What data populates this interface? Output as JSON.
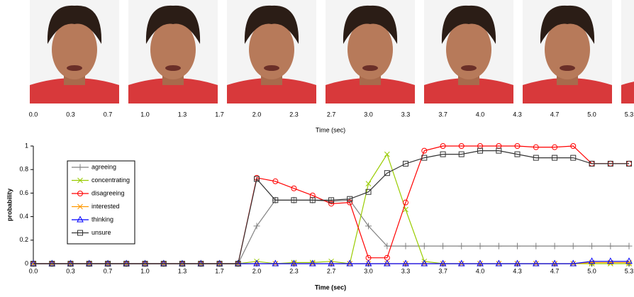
{
  "frame_axis": {
    "label": "Time (sec)",
    "xlim": [
      0,
      5.333
    ],
    "ticks": [
      {
        "value": 0,
        "label": "0.0"
      },
      {
        "value": 0.333,
        "label": "0.3"
      },
      {
        "value": 0.667,
        "label": "0.7"
      },
      {
        "value": 1,
        "label": "1.0"
      },
      {
        "value": 1.333,
        "label": "1.3"
      },
      {
        "value": 1.667,
        "label": "1.7"
      },
      {
        "value": 2,
        "label": "2.0"
      },
      {
        "value": 2.333,
        "label": "2.3"
      },
      {
        "value": 2.667,
        "label": "2.7"
      },
      {
        "value": 3,
        "label": "3.0"
      },
      {
        "value": 3.333,
        "label": "3.3"
      },
      {
        "value": 3.667,
        "label": "3.7"
      },
      {
        "value": 4,
        "label": "4.0"
      },
      {
        "value": 4.333,
        "label": "4.3"
      },
      {
        "value": 4.667,
        "label": "4.7"
      },
      {
        "value": 5,
        "label": "5.0"
      },
      {
        "value": 5.333,
        "label": "5.3"
      }
    ]
  },
  "chart_data": {
    "type": "line",
    "x_label": "Time (sec)",
    "y_label": "probability",
    "legend": "upper left",
    "grid": false,
    "x": [
      0,
      0.167,
      0.333,
      0.5,
      0.667,
      0.833,
      1,
      1.167,
      1.333,
      1.5,
      1.667,
      1.833,
      2,
      2.167,
      2.333,
      2.5,
      2.667,
      2.833,
      3,
      3.167,
      3.333,
      3.5,
      3.667,
      3.833,
      4,
      4.167,
      4.333,
      4.5,
      4.667,
      4.833,
      5,
      5.167,
      5.333
    ],
    "xlim": [
      0,
      5.333
    ],
    "xticks": [
      {
        "value": 0,
        "label": "0.0"
      },
      {
        "value": 0.333,
        "label": "0.3"
      },
      {
        "value": 0.667,
        "label": "0.7"
      },
      {
        "value": 1,
        "label": "1.0"
      },
      {
        "value": 1.333,
        "label": "1.3"
      },
      {
        "value": 1.667,
        "label": "1.7"
      },
      {
        "value": 2,
        "label": "2.0"
      },
      {
        "value": 2.333,
        "label": "2.3"
      },
      {
        "value": 2.667,
        "label": "2.7"
      },
      {
        "value": 3,
        "label": "3.0"
      },
      {
        "value": 3.333,
        "label": "3.3"
      },
      {
        "value": 3.667,
        "label": "3.7"
      },
      {
        "value": 4,
        "label": "4.0"
      },
      {
        "value": 4.333,
        "label": "4.3"
      },
      {
        "value": 4.667,
        "label": "4.7"
      },
      {
        "value": 5,
        "label": "5.0"
      },
      {
        "value": 5.333,
        "label": "5.3"
      }
    ],
    "ylim": [
      0,
      1
    ],
    "yticks": [
      0,
      0.2,
      0.4,
      0.6,
      0.8,
      1
    ],
    "series": [
      {
        "name": "agreeing",
        "color": "#808080",
        "marker": "plus",
        "values": [
          0,
          0,
          0,
          0,
          0,
          0,
          0,
          0,
          0,
          0,
          0,
          0,
          0.32,
          0.54,
          0.54,
          0.54,
          0.53,
          0.54,
          0.32,
          0.15,
          0.15,
          0.15,
          0.15,
          0.15,
          0.15,
          0.15,
          0.15,
          0.15,
          0.15,
          0.15,
          0.15,
          0.15,
          0.15
        ]
      },
      {
        "name": "concentrating",
        "color": "#99cc00",
        "marker": "cross",
        "values": [
          0,
          0,
          0,
          0,
          0,
          0,
          0,
          0,
          0,
          0,
          0,
          0,
          0.02,
          0,
          0.01,
          0.01,
          0.02,
          0,
          0.68,
          0.93,
          0.46,
          0.02,
          0,
          0,
          0,
          0,
          0,
          0,
          0,
          0,
          0,
          0,
          0
        ]
      },
      {
        "name": "disagreeing",
        "color": "#ff0000",
        "marker": "circle",
        "values": [
          0,
          0,
          0,
          0,
          0,
          0,
          0,
          0,
          0,
          0,
          0,
          0,
          0.73,
          0.7,
          0.64,
          0.58,
          0.51,
          0.52,
          0.05,
          0.05,
          0.52,
          0.96,
          1,
          1,
          1,
          1,
          1,
          0.99,
          0.99,
          1,
          0.85,
          0.85,
          0.85
        ]
      },
      {
        "name": "interested",
        "color": "#ff9900",
        "marker": "cross",
        "values": [
          0,
          0,
          0,
          0,
          0,
          0,
          0,
          0,
          0,
          0,
          0,
          0,
          0,
          0,
          0,
          0,
          0,
          0,
          0,
          0,
          0,
          0,
          0,
          0,
          0,
          0,
          0,
          0,
          0,
          0,
          0.01,
          0.01,
          0.01
        ]
      },
      {
        "name": "thinking",
        "color": "#0000ff",
        "marker": "triangle",
        "values": [
          0,
          0,
          0,
          0,
          0,
          0,
          0,
          0,
          0,
          0,
          0,
          0,
          0,
          0,
          0,
          0,
          0,
          0,
          0,
          0,
          0,
          0,
          0,
          0,
          0,
          0,
          0,
          0,
          0,
          0,
          0.02,
          0.02,
          0.02
        ]
      },
      {
        "name": "unsure",
        "color": "#333333",
        "marker": "square",
        "values": [
          0,
          0,
          0,
          0,
          0,
          0,
          0,
          0,
          0,
          0,
          0,
          0,
          0.72,
          0.54,
          0.54,
          0.54,
          0.54,
          0.55,
          0.61,
          0.77,
          0.85,
          0.9,
          0.93,
          0.93,
          0.96,
          0.96,
          0.93,
          0.9,
          0.9,
          0.9,
          0.85,
          0.85,
          0.85
        ]
      }
    ]
  }
}
